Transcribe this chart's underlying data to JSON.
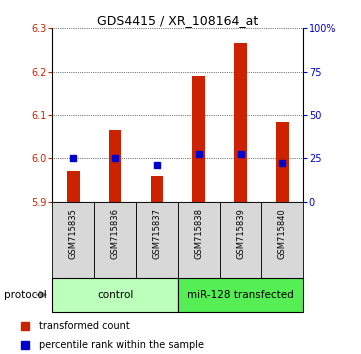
{
  "title": "GDS4415 / XR_108164_at",
  "samples": [
    "GSM715835",
    "GSM715836",
    "GSM715837",
    "GSM715838",
    "GSM715839",
    "GSM715840"
  ],
  "bar_base": 5.9,
  "bar_tops": [
    5.97,
    6.065,
    5.96,
    6.19,
    6.265,
    6.085
  ],
  "percentile_values": [
    6.0,
    6.0,
    5.985,
    6.01,
    6.01,
    5.99
  ],
  "ylim_left": [
    5.9,
    6.3
  ],
  "ylim_right": [
    0,
    100
  ],
  "yticks_left": [
    5.9,
    6.0,
    6.1,
    6.2,
    6.3
  ],
  "yticks_right": [
    0,
    25,
    50,
    75,
    100
  ],
  "ytick_labels_right": [
    "0",
    "25",
    "50",
    "75",
    "100%"
  ],
  "bar_color": "#cc2200",
  "dot_color": "#0000cc",
  "control_label": "control",
  "treated_label": "miR-128 transfected",
  "control_color": "#bbffbb",
  "treated_color": "#55ee55",
  "protocol_label": "protocol",
  "legend_bar_label": "transformed count",
  "legend_dot_label": "percentile rank within the sample",
  "panel_bg": "#d8d8d8",
  "title_fontsize": 9,
  "tick_fontsize": 7,
  "label_fontsize": 7,
  "bar_width": 0.3
}
